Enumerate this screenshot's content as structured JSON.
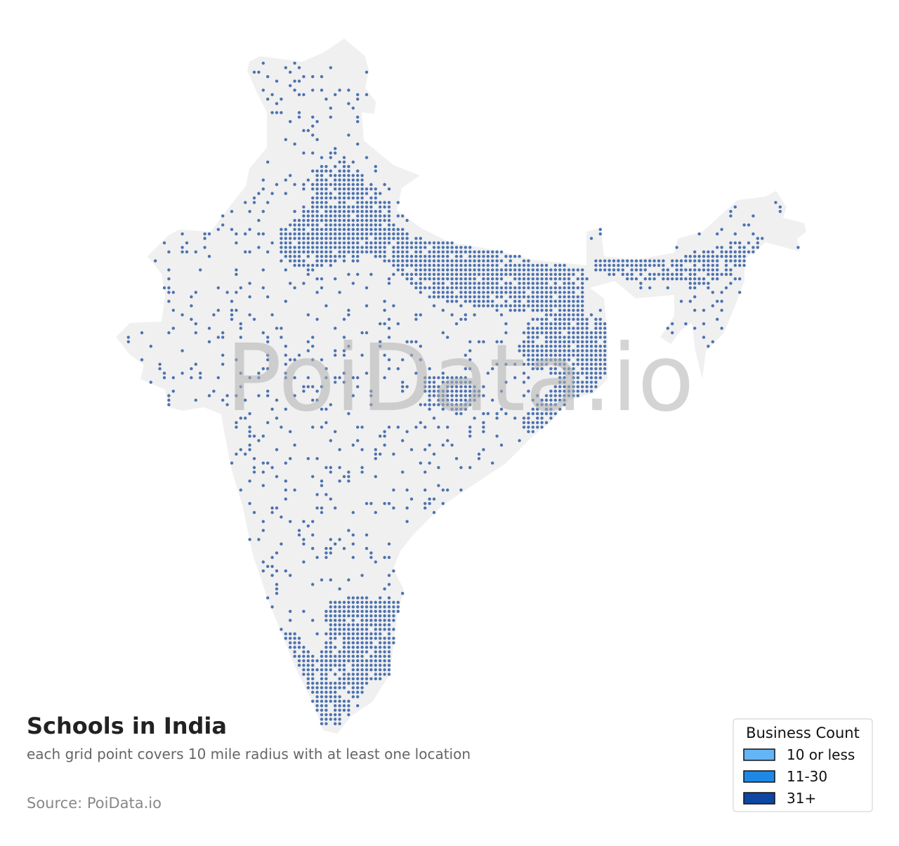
{
  "map": {
    "title": "Schools in India",
    "subtitle": "each grid point covers 10 mile radius with at least one location",
    "source": "Source: PoiData.io",
    "watermark": "PoiData.io",
    "point_color": "#4c72b0",
    "legend": {
      "title": "Business Count",
      "items": [
        {
          "label": "10 or less",
          "color": "#64b5f6"
        },
        {
          "label": "11-30",
          "color": "#1e88e5"
        },
        {
          "label": "31+",
          "color": "#0d47a1"
        }
      ]
    }
  }
}
